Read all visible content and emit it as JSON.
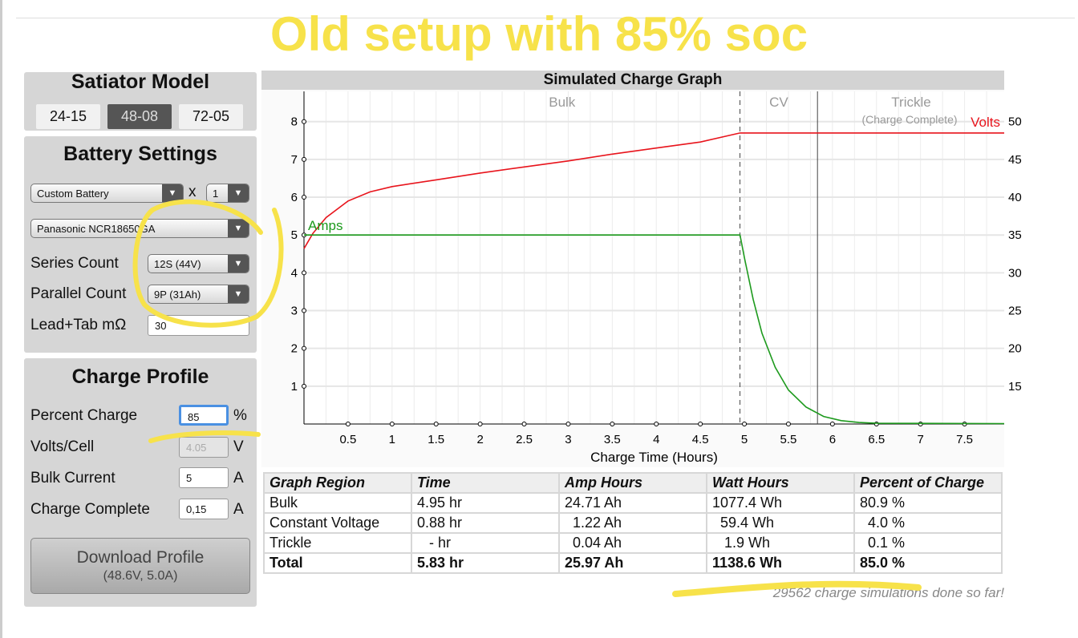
{
  "annotation": {
    "title": "Old setup with 85% soc",
    "highlight_color": "#f7e24a"
  },
  "model": {
    "title": "Satiator Model",
    "buttons": [
      "24-15",
      "48-08",
      "72-05"
    ],
    "selected": "48-08"
  },
  "battery": {
    "title": "Battery Settings",
    "battery_type": "Custom Battery",
    "multiplier_label": "x",
    "multiplier": "1",
    "cell": "Panasonic NCR18650GA",
    "series_label": "Series Count",
    "series_value": "12S (44V)",
    "parallel_label": "Parallel Count",
    "parallel_value": "9P (31Ah)",
    "lead_label": "Lead+Tab mΩ",
    "lead_value": "30"
  },
  "profile": {
    "title": "Charge Profile",
    "percent_label": "Percent Charge",
    "percent_value": "85",
    "percent_unit": "%",
    "vpc_label": "Volts/Cell",
    "vpc_value": "4.05",
    "vpc_unit": "V",
    "bulk_label": "Bulk Current",
    "bulk_value": "5",
    "bulk_unit": "A",
    "complete_label": "Charge Complete",
    "complete_value": "0,15",
    "complete_unit": "A",
    "download_label": "Download Profile",
    "download_sub": "(48.6V, 5.0A)"
  },
  "chart_data": {
    "type": "line",
    "title": "Simulated Charge Graph",
    "xlabel": "Charge Time (Hours)",
    "xlim": [
      0,
      7.95
    ],
    "xticks": [
      "0.5",
      "1",
      "1.5",
      "2",
      "2.5",
      "3",
      "3.5",
      "4",
      "4.5",
      "5",
      "5.5",
      "6",
      "6.5",
      "7",
      "7.5"
    ],
    "ylim_left": [
      0,
      8.8
    ],
    "yticks_left": [
      "1",
      "2",
      "3",
      "4",
      "5",
      "6",
      "7",
      "8"
    ],
    "ylim_right": [
      10,
      54
    ],
    "yticks_right": [
      "15",
      "20",
      "25",
      "30",
      "35",
      "40",
      "45",
      "50"
    ],
    "regions": [
      {
        "label": "Bulk",
        "end": 4.95
      },
      {
        "label": "CV",
        "end": 5.83
      },
      {
        "label": "Trickle",
        "sub": "(Charge Complete)"
      }
    ],
    "series": [
      {
        "name": "Volts",
        "axis": "right",
        "color": "#e8141c",
        "x": [
          0,
          0.1,
          0.25,
          0.5,
          0.75,
          1,
          1.5,
          2,
          2.5,
          3,
          3.5,
          4,
          4.5,
          4.95,
          7.95
        ],
        "y": [
          33.2,
          35.2,
          37.3,
          39.5,
          40.7,
          41.4,
          42.3,
          43.2,
          44.0,
          44.8,
          45.7,
          46.5,
          47.3,
          48.5,
          48.5
        ]
      },
      {
        "name": "Amps",
        "axis": "left",
        "color": "#1d9a1d",
        "x": [
          0,
          4.95,
          5.0,
          5.1,
          5.2,
          5.35,
          5.5,
          5.7,
          5.9,
          6.1,
          6.3,
          6.5,
          7.95
        ],
        "y": [
          5,
          5,
          4.4,
          3.3,
          2.4,
          1.5,
          0.9,
          0.45,
          0.2,
          0.09,
          0.04,
          0.02,
          0.01
        ]
      }
    ]
  },
  "table": {
    "headers": [
      "Graph Region",
      "Time",
      "Amp Hours",
      "Watt Hours",
      "Percent of Charge"
    ],
    "rows": [
      [
        "Bulk",
        "4.95 hr",
        "24.71 Ah",
        "1077.4 Wh",
        "80.9 %"
      ],
      [
        "Constant Voltage",
        "0.88 hr",
        "  1.22 Ah",
        "  59.4 Wh",
        "  4.0 %"
      ],
      [
        "Trickle",
        "   - hr",
        "  0.04 Ah",
        "   1.9 Wh",
        "  0.1 %"
      ]
    ],
    "total": [
      "Total",
      "5.83 hr",
      "25.97 Ah",
      "1138.6 Wh",
      "85.0 %"
    ]
  },
  "footer": "29562 charge simulations done so far!"
}
